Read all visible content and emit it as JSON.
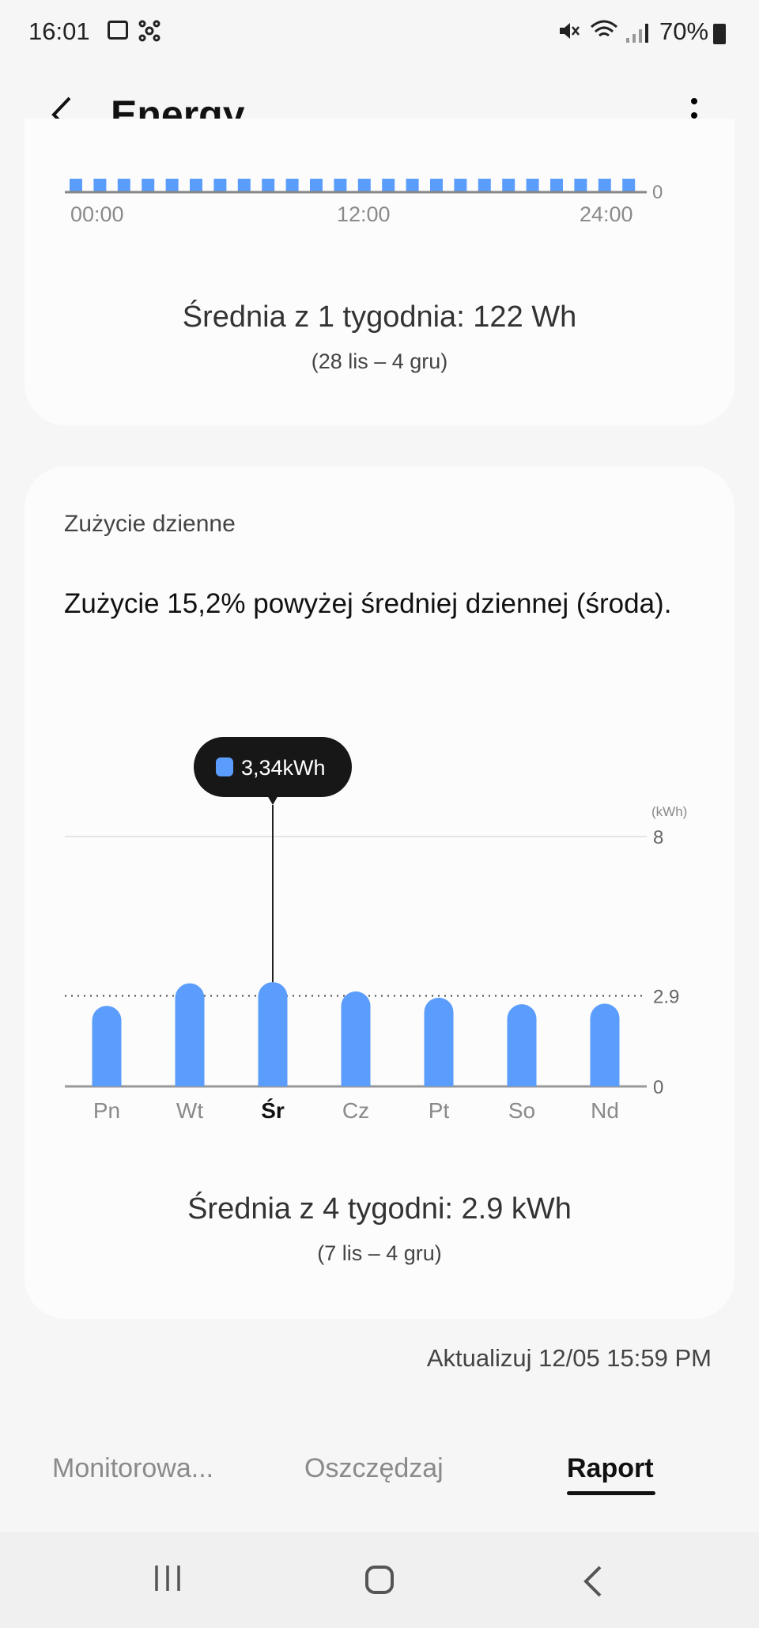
{
  "status_bar": {
    "time": "16:01",
    "battery": "70%"
  },
  "header": {
    "title": "Energy"
  },
  "hourly_card": {
    "x_ticks": [
      "00:00",
      "12:00",
      "24:00"
    ],
    "y_tick": "0",
    "average": "Średnia z 1 tygodnia: 122 Wh",
    "range": "(28 lis – 4 gru)"
  },
  "daily_card": {
    "title": "Zużycie dzienne",
    "summary": "Zużycie 15,2% powyżej średniej dziennej (środa).",
    "average": "Średnia z 4 tygodni: 2.9 kWh",
    "range": "(7 lis – 4 gru)"
  },
  "chart_data": {
    "type": "bar",
    "unit": "(kWh)",
    "categories": [
      "Pn",
      "Wt",
      "Śr",
      "Cz",
      "Pt",
      "So",
      "Nd"
    ],
    "values": [
      2.58,
      3.3,
      3.34,
      3.04,
      2.84,
      2.63,
      2.65
    ],
    "selected_index": 2,
    "tooltip": "3,34kWh",
    "average_line": 2.9,
    "y_ticks": [
      "8",
      "2.9",
      "0"
    ],
    "ylim": [
      0,
      8
    ],
    "bar_color": "#5b9dfc"
  },
  "updated": "Aktualizuj 12/05 15:59 PM",
  "tabs": [
    {
      "label": "Monitorowa..."
    },
    {
      "label": "Oszczędzaj"
    },
    {
      "label": "Raport"
    }
  ]
}
